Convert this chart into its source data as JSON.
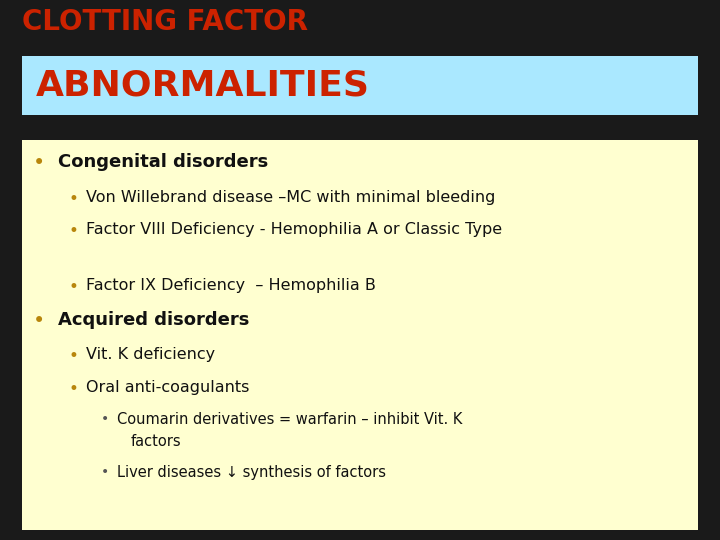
{
  "title_line1": "CLOTTING FACTOR",
  "title_line2": "ABNORMALITIES",
  "title_color": "#cc2200",
  "title_bg_color": "#aae8ff",
  "background_color": "#1a1a1a",
  "content_bg_color": "#ffffd0",
  "bullet_color": "#b8860b",
  "bullet_color2": "#555555",
  "text_color": "#111111",
  "title1_fontsize": 20,
  "title2_fontsize": 26,
  "content": [
    {
      "level": 0,
      "bold": true,
      "text": "Congenital disorders",
      "extra_lines": 0
    },
    {
      "level": 1,
      "bold": false,
      "text": "Von Willebrand disease –MC with minimal bleeding",
      "extra_lines": 0
    },
    {
      "level": 1,
      "bold": false,
      "text": "Factor VIII Deficiency  - Hemophilia A or Classic Type",
      "extra_lines": 1
    },
    {
      "level": 1,
      "bold": false,
      "text": "Factor IX Deficiency  – Hemophilia B",
      "extra_lines": 0
    },
    {
      "level": 0,
      "bold": true,
      "text": "Acquired disorders",
      "extra_lines": 0
    },
    {
      "level": 1,
      "bold": false,
      "text": "Vit. K deficiency",
      "extra_lines": 0
    },
    {
      "level": 1,
      "bold": false,
      "text": "Oral anti-coagulants",
      "extra_lines": 0
    },
    {
      "level": 2,
      "bold": false,
      "text": "Coumarin derivatives = warfarin – inhibit Vit. K factors",
      "extra_lines": 1
    },
    {
      "level": 2,
      "bold": false,
      "text": "Liver diseases ↓ synthesis of factors",
      "extra_lines": 0
    }
  ],
  "fig_width": 7.2,
  "fig_height": 5.4,
  "dpi": 100
}
